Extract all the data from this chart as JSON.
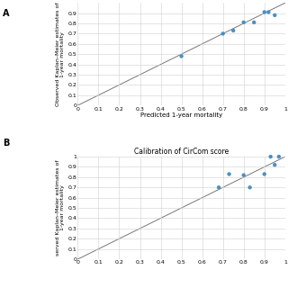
{
  "panel_A": {
    "scatter_x": [
      0.5,
      0.7,
      0.75,
      0.8,
      0.85,
      0.9,
      0.92,
      0.95
    ],
    "scatter_y": [
      0.48,
      0.7,
      0.73,
      0.81,
      0.81,
      0.91,
      0.91,
      0.88
    ],
    "line_x": [
      0,
      1
    ],
    "line_y": [
      0,
      1
    ],
    "xlabel": "Predicted 1-year mortality",
    "ylabel": "Observed Kaplan–Meier estimates of\n1-year mortality",
    "xlim": [
      0,
      1
    ],
    "ylim": [
      0,
      1
    ],
    "xticks": [
      0,
      0.1,
      0.2,
      0.3,
      0.4,
      0.5,
      0.6,
      0.7,
      0.8,
      0.9,
      1
    ],
    "yticks": [
      0,
      0.1,
      0.2,
      0.3,
      0.4,
      0.5,
      0.6,
      0.7,
      0.8,
      0.9
    ],
    "label": "A",
    "dot_color": "#4a90c4",
    "line_color": "#777777"
  },
  "panel_B": {
    "scatter_x": [
      0.68,
      0.73,
      0.8,
      0.83,
      0.9,
      0.93,
      0.95,
      0.97
    ],
    "scatter_y": [
      0.7,
      0.83,
      0.82,
      0.7,
      0.83,
      1.0,
      0.92,
      1.0
    ],
    "line_x": [
      0,
      1
    ],
    "line_y": [
      0,
      1
    ],
    "title": "Calibration of CirCom score",
    "xlabel": "",
    "ylabel": "served Kaplan–Meier estimates of\n1-year mortality",
    "xlim": [
      0,
      1
    ],
    "ylim": [
      0,
      1
    ],
    "xticks": [
      0,
      0.1,
      0.2,
      0.3,
      0.4,
      0.5,
      0.6,
      0.7,
      0.8,
      0.9,
      1
    ],
    "yticks": [
      0,
      0.1,
      0.2,
      0.3,
      0.4,
      0.5,
      0.6,
      0.7,
      0.8,
      0.9,
      1.0
    ],
    "label": "B",
    "dot_color": "#4a90c4",
    "line_color": "#777777"
  },
  "bg_color": "#ffffff",
  "grid_color": "#d0d0d0"
}
